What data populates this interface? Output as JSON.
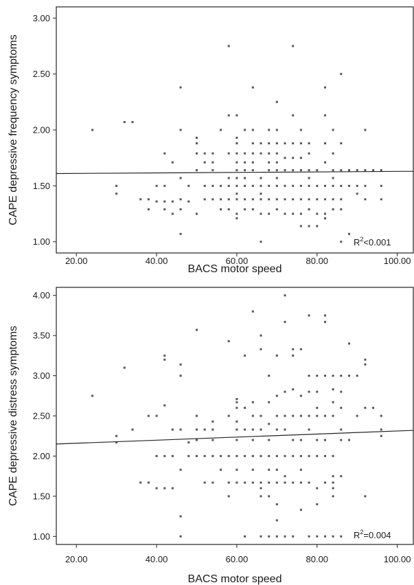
{
  "chart_data": [
    {
      "type": "scatter",
      "xlabel": "BACS motor speed",
      "ylabel": "CAPE depressive frequency symptoms",
      "xlim": [
        15,
        104
      ],
      "ylim": [
        0.9,
        3.1
      ],
      "xticks": [
        20,
        40,
        60,
        80,
        100
      ],
      "xtick_labels": [
        "20.00",
        "40.00",
        "60.00",
        "80.00",
        "100.00"
      ],
      "yticks": [
        1.0,
        1.5,
        2.0,
        2.5,
        3.0
      ],
      "ytick_labels": [
        "1.00",
        "1.50",
        "2.00",
        "2.50",
        "3.00"
      ],
      "annotation": {
        "r2_base": "R",
        "r2_sup": "2",
        "r2_rest": "<0.001"
      },
      "fit_line": {
        "x": [
          15,
          104
        ],
        "y": [
          1.61,
          1.63
        ]
      },
      "points": [
        [
          24,
          2.0
        ],
        [
          30,
          1.5
        ],
        [
          30,
          1.43
        ],
        [
          32,
          2.07
        ],
        [
          34,
          2.07
        ],
        [
          36,
          1.38
        ],
        [
          38,
          1.38
        ],
        [
          38,
          1.29
        ],
        [
          40,
          1.36
        ],
        [
          40,
          1.5
        ],
        [
          42,
          1.5
        ],
        [
          42,
          1.36
        ],
        [
          42,
          1.29
        ],
        [
          42,
          1.79
        ],
        [
          44,
          1.36
        ],
        [
          44,
          1.25
        ],
        [
          44,
          1.71
        ],
        [
          46,
          2.38
        ],
        [
          46,
          2.0
        ],
        [
          46,
          1.57
        ],
        [
          46,
          1.38
        ],
        [
          46,
          1.29
        ],
        [
          46,
          1.07
        ],
        [
          48,
          1.5
        ],
        [
          48,
          1.36
        ],
        [
          50,
          1.93
        ],
        [
          50,
          1.88
        ],
        [
          50,
          1.79
        ],
        [
          50,
          1.64
        ],
        [
          50,
          1.25
        ],
        [
          52,
          1.79
        ],
        [
          52,
          1.71
        ],
        [
          52,
          1.5
        ],
        [
          52,
          1.38
        ],
        [
          54,
          1.79
        ],
        [
          54,
          1.71
        ],
        [
          54,
          1.64
        ],
        [
          54,
          1.5
        ],
        [
          54,
          1.38
        ],
        [
          56,
          2.0
        ],
        [
          56,
          1.5
        ],
        [
          56,
          1.38
        ],
        [
          56,
          1.29
        ],
        [
          58,
          2.75
        ],
        [
          58,
          2.13
        ],
        [
          58,
          1.79
        ],
        [
          58,
          1.57
        ],
        [
          58,
          1.5
        ],
        [
          58,
          1.38
        ],
        [
          58,
          1.29
        ],
        [
          60,
          2.13
        ],
        [
          60,
          1.93
        ],
        [
          60,
          1.88
        ],
        [
          60,
          1.79
        ],
        [
          60,
          1.71
        ],
        [
          60,
          1.64
        ],
        [
          60,
          1.57
        ],
        [
          60,
          1.5
        ],
        [
          60,
          1.43
        ],
        [
          60,
          1.38
        ],
        [
          60,
          1.25
        ],
        [
          60,
          1.21
        ],
        [
          62,
          2.0
        ],
        [
          62,
          1.79
        ],
        [
          62,
          1.71
        ],
        [
          62,
          1.64
        ],
        [
          62,
          1.57
        ],
        [
          62,
          1.5
        ],
        [
          62,
          1.38
        ],
        [
          62,
          1.29
        ],
        [
          64,
          2.38
        ],
        [
          64,
          2.0
        ],
        [
          64,
          1.88
        ],
        [
          64,
          1.79
        ],
        [
          64,
          1.71
        ],
        [
          64,
          1.64
        ],
        [
          64,
          1.5
        ],
        [
          64,
          1.38
        ],
        [
          64,
          1.29
        ],
        [
          66,
          1.88
        ],
        [
          66,
          1.79
        ],
        [
          66,
          1.57
        ],
        [
          66,
          1.5
        ],
        [
          66,
          1.43
        ],
        [
          66,
          1.38
        ],
        [
          66,
          1.25
        ],
        [
          66,
          1.0
        ],
        [
          68,
          2.0
        ],
        [
          68,
          1.88
        ],
        [
          68,
          1.79
        ],
        [
          68,
          1.71
        ],
        [
          68,
          1.64
        ],
        [
          68,
          1.5
        ],
        [
          68,
          1.38
        ],
        [
          68,
          1.25
        ],
        [
          70,
          2.25
        ],
        [
          70,
          2.0
        ],
        [
          70,
          1.88
        ],
        [
          70,
          1.79
        ],
        [
          70,
          1.71
        ],
        [
          70,
          1.64
        ],
        [
          70,
          1.57
        ],
        [
          70,
          1.5
        ],
        [
          70,
          1.38
        ],
        [
          70,
          1.29
        ],
        [
          72,
          1.88
        ],
        [
          72,
          1.75
        ],
        [
          72,
          1.64
        ],
        [
          72,
          1.5
        ],
        [
          72,
          1.38
        ],
        [
          72,
          1.25
        ],
        [
          74,
          2.75
        ],
        [
          74,
          2.13
        ],
        [
          74,
          1.88
        ],
        [
          74,
          1.75
        ],
        [
          74,
          1.64
        ],
        [
          74,
          1.5
        ],
        [
          74,
          1.38
        ],
        [
          74,
          1.25
        ],
        [
          76,
          2.0
        ],
        [
          76,
          1.88
        ],
        [
          76,
          1.75
        ],
        [
          76,
          1.64
        ],
        [
          76,
          1.5
        ],
        [
          76,
          1.38
        ],
        [
          76,
          1.25
        ],
        [
          76,
          1.14
        ],
        [
          78,
          1.88
        ],
        [
          78,
          1.79
        ],
        [
          78,
          1.64
        ],
        [
          78,
          1.57
        ],
        [
          78,
          1.5
        ],
        [
          78,
          1.38
        ],
        [
          78,
          1.29
        ],
        [
          78,
          1.14
        ],
        [
          80,
          1.64
        ],
        [
          80,
          1.5
        ],
        [
          80,
          1.38
        ],
        [
          80,
          1.25
        ],
        [
          80,
          1.14
        ],
        [
          82,
          2.38
        ],
        [
          82,
          2.13
        ],
        [
          82,
          1.88
        ],
        [
          82,
          1.71
        ],
        [
          82,
          1.5
        ],
        [
          82,
          1.38
        ],
        [
          82,
          1.25
        ],
        [
          82,
          1.21
        ],
        [
          84,
          2.0
        ],
        [
          84,
          1.79
        ],
        [
          84,
          1.64
        ],
        [
          84,
          1.57
        ],
        [
          84,
          1.5
        ],
        [
          84,
          1.38
        ],
        [
          84,
          1.29
        ],
        [
          86,
          2.5
        ],
        [
          86,
          1.88
        ],
        [
          86,
          1.64
        ],
        [
          86,
          1.5
        ],
        [
          86,
          1.38
        ],
        [
          86,
          1.29
        ],
        [
          86,
          1.0
        ],
        [
          88,
          1.64
        ],
        [
          88,
          1.5
        ],
        [
          88,
          1.07
        ],
        [
          90,
          1.64
        ],
        [
          90,
          1.5
        ],
        [
          90,
          1.43
        ],
        [
          92,
          2.0
        ],
        [
          92,
          1.64
        ],
        [
          92,
          1.5
        ],
        [
          92,
          1.38
        ],
        [
          94,
          1.64
        ],
        [
          96,
          1.5
        ],
        [
          96,
          1.38
        ],
        [
          96,
          1.64
        ]
      ]
    },
    {
      "type": "scatter",
      "xlabel": "BACS motor speed",
      "ylabel": "CAPE depressive distress symptoms",
      "xlim": [
        15,
        104
      ],
      "ylim": [
        0.9,
        4.1
      ],
      "xticks": [
        20,
        40,
        60,
        80,
        100
      ],
      "xtick_labels": [
        "20.00",
        "40.00",
        "60.00",
        "80.00",
        "100.00"
      ],
      "yticks": [
        1.0,
        1.5,
        2.0,
        2.5,
        3.0,
        3.5,
        4.0
      ],
      "ytick_labels": [
        "1.00",
        "1.50",
        "2.00",
        "2.50",
        "3.00",
        "3.50",
        "4.00"
      ],
      "annotation": {
        "r2_base": "R",
        "r2_sup": "2",
        "r2_rest": "=0.004"
      },
      "fit_line": {
        "x": [
          15,
          104
        ],
        "y": [
          2.15,
          2.32
        ]
      },
      "points": [
        [
          24,
          2.75
        ],
        [
          30,
          2.25
        ],
        [
          30,
          2.17
        ],
        [
          32,
          3.1
        ],
        [
          34,
          2.33
        ],
        [
          36,
          1.67
        ],
        [
          38,
          2.5
        ],
        [
          38,
          1.67
        ],
        [
          40,
          2.5
        ],
        [
          40,
          2.0
        ],
        [
          40,
          1.6
        ],
        [
          42,
          3.25
        ],
        [
          42,
          3.2
        ],
        [
          42,
          2.63
        ],
        [
          42,
          2.0
        ],
        [
          42,
          1.6
        ],
        [
          44,
          2.33
        ],
        [
          44,
          2.0
        ],
        [
          44,
          1.6
        ],
        [
          46,
          3.14
        ],
        [
          46,
          3.0
        ],
        [
          46,
          2.33
        ],
        [
          46,
          1.83
        ],
        [
          46,
          1.25
        ],
        [
          46,
          1.0
        ],
        [
          48,
          2.17
        ],
        [
          48,
          2.0
        ],
        [
          50,
          3.57
        ],
        [
          50,
          2.5
        ],
        [
          50,
          2.33
        ],
        [
          50,
          2.2
        ],
        [
          50,
          2.0
        ],
        [
          52,
          2.33
        ],
        [
          52,
          2.0
        ],
        [
          52,
          1.67
        ],
        [
          54,
          2.43
        ],
        [
          54,
          2.33
        ],
        [
          54,
          2.2
        ],
        [
          54,
          2.0
        ],
        [
          54,
          1.67
        ],
        [
          56,
          2.0
        ],
        [
          56,
          1.83
        ],
        [
          58,
          3.43
        ],
        [
          58,
          2.5
        ],
        [
          58,
          2.0
        ],
        [
          58,
          1.67
        ],
        [
          58,
          1.5
        ],
        [
          60,
          2.71
        ],
        [
          60,
          2.67
        ],
        [
          60,
          2.6
        ],
        [
          60,
          2.43
        ],
        [
          60,
          2.33
        ],
        [
          60,
          2.2
        ],
        [
          60,
          2.0
        ],
        [
          60,
          1.83
        ],
        [
          60,
          1.67
        ],
        [
          62,
          3.25
        ],
        [
          62,
          2.6
        ],
        [
          62,
          2.33
        ],
        [
          62,
          2.0
        ],
        [
          62,
          1.67
        ],
        [
          62,
          1.0
        ],
        [
          64,
          3.8
        ],
        [
          64,
          2.67
        ],
        [
          64,
          2.5
        ],
        [
          64,
          2.33
        ],
        [
          64,
          2.2
        ],
        [
          64,
          2.0
        ],
        [
          64,
          1.83
        ],
        [
          64,
          1.67
        ],
        [
          66,
          3.5
        ],
        [
          66,
          3.33
        ],
        [
          66,
          2.5
        ],
        [
          66,
          2.33
        ],
        [
          66,
          2.0
        ],
        [
          66,
          1.67
        ],
        [
          66,
          1.6
        ],
        [
          66,
          1.5
        ],
        [
          66,
          1.0
        ],
        [
          68,
          3.0
        ],
        [
          68,
          2.67
        ],
        [
          68,
          2.4
        ],
        [
          68,
          2.2
        ],
        [
          68,
          2.0
        ],
        [
          68,
          1.83
        ],
        [
          68,
          1.67
        ],
        [
          68,
          1.5
        ],
        [
          68,
          1.0
        ],
        [
          70,
          3.25
        ],
        [
          70,
          2.75
        ],
        [
          70,
          2.5
        ],
        [
          70,
          2.33
        ],
        [
          70,
          2.0
        ],
        [
          70,
          1.83
        ],
        [
          70,
          1.67
        ],
        [
          70,
          1.4
        ],
        [
          70,
          1.2
        ],
        [
          70,
          1.0
        ],
        [
          72,
          4.0
        ],
        [
          72,
          3.67
        ],
        [
          72,
          2.8
        ],
        [
          72,
          2.5
        ],
        [
          72,
          2.33
        ],
        [
          72,
          2.0
        ],
        [
          72,
          1.75
        ],
        [
          72,
          1.67
        ],
        [
          72,
          1.0
        ],
        [
          74,
          3.33
        ],
        [
          74,
          3.25
        ],
        [
          74,
          2.83
        ],
        [
          74,
          2.5
        ],
        [
          74,
          2.2
        ],
        [
          74,
          2.0
        ],
        [
          74,
          1.67
        ],
        [
          74,
          1.0
        ],
        [
          76,
          3.33
        ],
        [
          76,
          2.75
        ],
        [
          76,
          2.5
        ],
        [
          76,
          2.2
        ],
        [
          76,
          2.0
        ],
        [
          76,
          1.83
        ],
        [
          76,
          1.67
        ],
        [
          76,
          1.33
        ],
        [
          78,
          3.75
        ],
        [
          78,
          3.0
        ],
        [
          78,
          2.8
        ],
        [
          78,
          2.5
        ],
        [
          78,
          2.33
        ],
        [
          78,
          2.0
        ],
        [
          78,
          1.67
        ],
        [
          78,
          1.0
        ],
        [
          80,
          3.0
        ],
        [
          80,
          2.8
        ],
        [
          80,
          2.6
        ],
        [
          80,
          2.5
        ],
        [
          80,
          2.2
        ],
        [
          80,
          2.0
        ],
        [
          80,
          1.6
        ],
        [
          80,
          1.4
        ],
        [
          80,
          1.0
        ],
        [
          82,
          3.75
        ],
        [
          82,
          3.67
        ],
        [
          82,
          3.0
        ],
        [
          82,
          2.5
        ],
        [
          82,
          2.2
        ],
        [
          82,
          2.0
        ],
        [
          82,
          1.67
        ],
        [
          82,
          1.0
        ],
        [
          84,
          3.0
        ],
        [
          84,
          2.83
        ],
        [
          84,
          2.67
        ],
        [
          84,
          2.5
        ],
        [
          84,
          2.0
        ],
        [
          84,
          1.75
        ],
        [
          84,
          1.67
        ],
        [
          84,
          1.6
        ],
        [
          84,
          1.5
        ],
        [
          84,
          1.0
        ],
        [
          86,
          3.0
        ],
        [
          86,
          2.8
        ],
        [
          86,
          2.6
        ],
        [
          86,
          2.33
        ],
        [
          86,
          2.2
        ],
        [
          86,
          1.75
        ],
        [
          86,
          1.0
        ],
        [
          88,
          3.4
        ],
        [
          88,
          3.0
        ],
        [
          88,
          2.2
        ],
        [
          90,
          3.0
        ],
        [
          90,
          2.5
        ],
        [
          92,
          3.2
        ],
        [
          92,
          3.14
        ],
        [
          92,
          2.6
        ],
        [
          92,
          1.5
        ],
        [
          94,
          2.6
        ],
        [
          96,
          2.5
        ],
        [
          96,
          2.33
        ],
        [
          96,
          2.25
        ]
      ]
    }
  ]
}
